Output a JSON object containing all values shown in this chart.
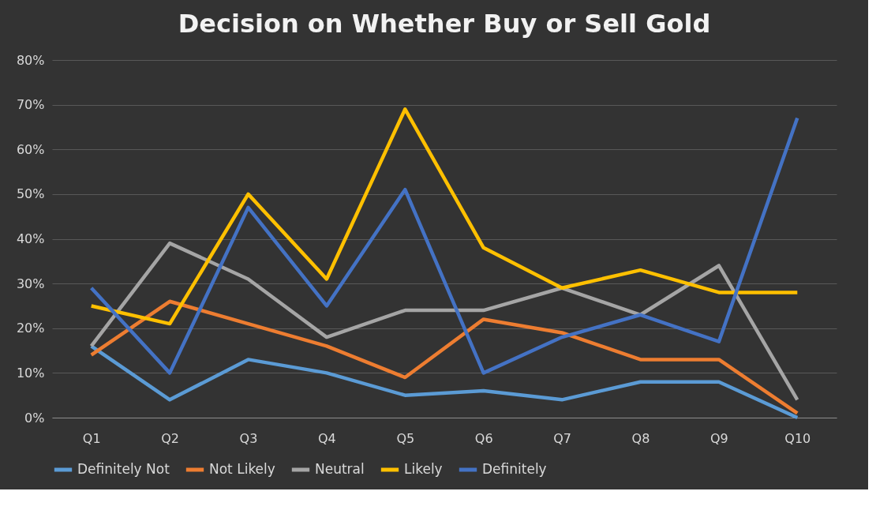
{
  "chart_data": {
    "type": "line",
    "title": "Decision on Whether Buy or Sell Gold",
    "categories": [
      "Q1",
      "Q2",
      "Q3",
      "Q4",
      "Q5",
      "Q6",
      "Q7",
      "Q8",
      "Q9",
      "Q10"
    ],
    "series": [
      {
        "name": "Definitely Not",
        "color": "#5b9bd5",
        "values": [
          16,
          4,
          13,
          10,
          5,
          6,
          4,
          8,
          8,
          0
        ]
      },
      {
        "name": "Not Likely",
        "color": "#ed7d31",
        "values": [
          14,
          26,
          21,
          16,
          9,
          22,
          19,
          13,
          13,
          1
        ]
      },
      {
        "name": "Neutral",
        "color": "#a5a5a5",
        "values": [
          16,
          39,
          31,
          18,
          24,
          24,
          29,
          23,
          34,
          4
        ]
      },
      {
        "name": "Likely",
        "color": "#ffc000",
        "values": [
          25,
          21,
          50,
          31,
          69,
          38,
          29,
          33,
          28,
          28
        ]
      },
      {
        "name": "Definitely",
        "color": "#4472c4",
        "values": [
          29,
          10,
          47,
          25,
          51,
          10,
          18,
          23,
          17,
          67
        ]
      }
    ],
    "ylim": [
      0,
      80
    ],
    "yticks": [
      {
        "value": 0,
        "label": "0%"
      },
      {
        "value": 10,
        "label": "10%"
      },
      {
        "value": 20,
        "label": "20%"
      },
      {
        "value": 30,
        "label": "30%"
      },
      {
        "value": 40,
        "label": "40%"
      },
      {
        "value": 50,
        "label": "50%"
      },
      {
        "value": 60,
        "label": "60%"
      },
      {
        "value": 70,
        "label": "70%"
      },
      {
        "value": 80,
        "label": "80%"
      }
    ],
    "grid": "y",
    "legend": "bottom",
    "marker": "none",
    "line_style": "solid"
  }
}
